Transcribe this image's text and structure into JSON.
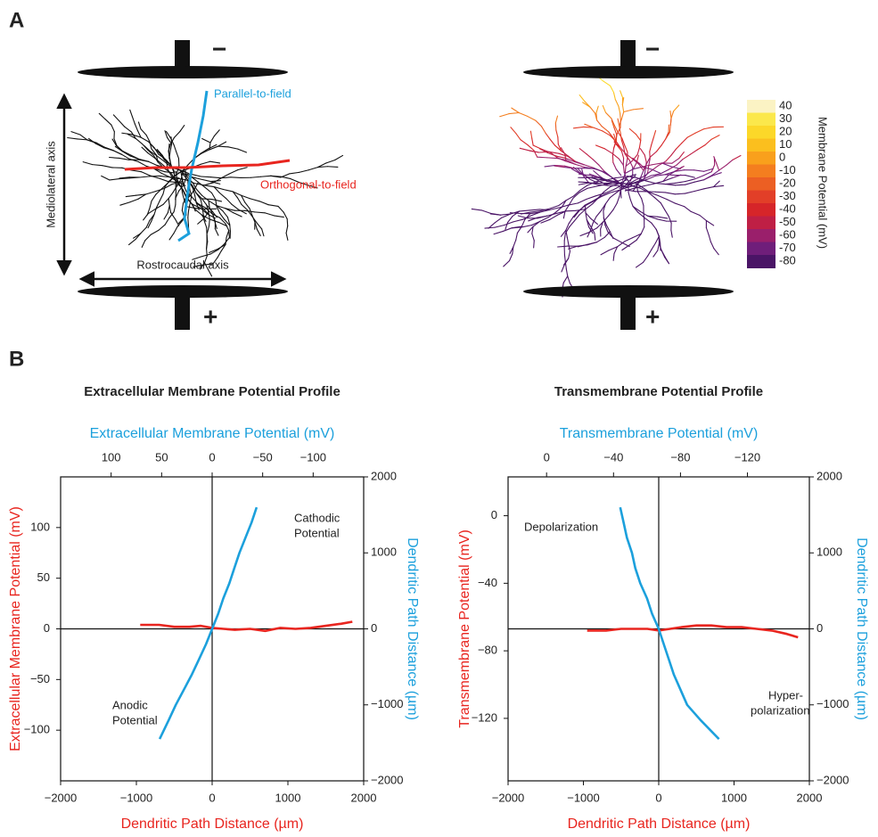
{
  "panel_a": {
    "label": "A",
    "electrode_top_sign": "−",
    "electrode_bottom_sign": "+",
    "parallel_label": "Parallel-to-field",
    "orthogonal_label": "Orthogonal-to-field",
    "mediolateral_label": "Mediolateral axis",
    "rostrocaudal_label": "Rostrocaudal axis",
    "colorbar": {
      "title": "Membrane Potential (mV)",
      "ticks": [
        40,
        30,
        20,
        10,
        0,
        -10,
        -20,
        -30,
        -40,
        -50,
        -60,
        -70,
        -80
      ],
      "colors": [
        "#fbf3c4",
        "#fbe84b",
        "#fcd829",
        "#fbbf1e",
        "#f9a01c",
        "#f47e1f",
        "#ec5f23",
        "#e23f28",
        "#d62529",
        "#bf1f45",
        "#9a1f6b",
        "#6f1e7a",
        "#4a1466"
      ]
    }
  },
  "panel_b": {
    "label": "B"
  },
  "chart_data": [
    {
      "type": "line",
      "title": "Extracellular Membrane Potential Profile",
      "xlabel": "Dendritic Path Distance (µm)",
      "ylabel": "Extracellular Membrane Potential (mV)",
      "x2label": "Extracellular Membrane Potential (mV)",
      "y2label": "Dendritic Path Distance (µm)",
      "xlim": [
        -2000,
        2000
      ],
      "xticks": [
        {
          "value": -2000,
          "label": "−2000"
        },
        {
          "value": -1000,
          "label": "−1000"
        },
        0,
        1000,
        2000
      ],
      "ylim": [
        -150,
        150
      ],
      "yticks": [
        {
          "value": -100,
          "label": "−100"
        },
        {
          "value": -50,
          "label": "−50"
        },
        0,
        50,
        100
      ],
      "x2lim": [
        150,
        -150
      ],
      "x2ticks": [
        100,
        50,
        0,
        {
          "value": -50,
          "label": "−50"
        },
        {
          "value": -100,
          "label": "−100"
        }
      ],
      "y2lim": [
        -2000,
        2000
      ],
      "y2ticks": [
        {
          "value": -2000,
          "label": "−2000"
        },
        {
          "value": -1000,
          "label": "−1000"
        },
        0,
        1000,
        2000
      ],
      "series": [
        {
          "color": "#e8251f",
          "x": [
            -950,
            -700,
            -500,
            -300,
            -150,
            0,
            150,
            300,
            500,
            700,
            900,
            1100,
            1300,
            1500,
            1700,
            1850
          ],
          "values": [
            4,
            4,
            2,
            2,
            3,
            1,
            0,
            -1,
            0,
            -2,
            1,
            0,
            1,
            3,
            5,
            7
          ]
        },
        {
          "color": "#1ca0dc",
          "x_axis": "x2",
          "axis": "y2",
          "x": [
            52,
            43,
            36,
            28,
            20,
            13,
            6,
            0,
            -6,
            -11,
            -17,
            -22,
            -27,
            -33,
            -39,
            -44
          ],
          "values": [
            -1450,
            -1200,
            -1000,
            -800,
            -600,
            -400,
            -200,
            0,
            200,
            400,
            600,
            800,
            1000,
            1200,
            1400,
            1600
          ]
        }
      ],
      "annotations": [
        [
          "Cathodic",
          "Potential"
        ],
        [
          "Anodic",
          "Potential"
        ]
      ]
    },
    {
      "type": "line",
      "title": "Transmembrane Potential Profile",
      "xlabel": "Dendritic Path Distance (µm)",
      "ylabel": "Transmembrane Potential (mV)",
      "x2label": "Transmembrane Potential (mV)",
      "y2label": "Dendritic Path Distance (µm)",
      "xlim": [
        -2000,
        2000
      ],
      "xticks": [
        {
          "value": -2000,
          "label": "−2000"
        },
        {
          "value": -1000,
          "label": "−1000"
        },
        0,
        1000,
        2000
      ],
      "ylim": [
        -157,
        23
      ],
      "yticks": [
        {
          "value": -120,
          "label": "−120"
        },
        {
          "value": -80,
          "label": "−80"
        },
        {
          "value": -40,
          "label": "−40"
        },
        0
      ],
      "x2lim": [
        23,
        -157
      ],
      "x2ticks": [
        0,
        {
          "value": -40,
          "label": "−40"
        },
        {
          "value": -80,
          "label": "−80"
        },
        {
          "value": -120,
          "label": "−120"
        }
      ],
      "y2lim": [
        -2000,
        2000
      ],
      "y2ticks": [
        {
          "value": -2000,
          "label": "−2000"
        },
        {
          "value": -1000,
          "label": "−1000"
        },
        0,
        1000,
        2000
      ],
      "series": [
        {
          "color": "#e8251f",
          "x": [
            -950,
            -700,
            -500,
            -300,
            -150,
            0,
            150,
            300,
            500,
            700,
            900,
            1100,
            1300,
            1500,
            1700,
            1850
          ],
          "values": [
            -68,
            -68,
            -67,
            -67,
            -67,
            -68,
            -67,
            -66,
            -65,
            -65,
            -66,
            -66,
            -67,
            -68,
            -70,
            -72
          ]
        },
        {
          "color": "#1ca0dc",
          "x_axis": "x2",
          "axis": "y2",
          "x": [
            -103,
            -92,
            -84,
            -80,
            -76,
            -73,
            -70,
            -67,
            -63,
            -60,
            -56,
            -53,
            -51,
            -48,
            -46,
            -44
          ],
          "values": [
            -1450,
            -1200,
            -1000,
            -800,
            -600,
            -400,
            -200,
            0,
            200,
            400,
            600,
            800,
            1000,
            1200,
            1400,
            1600
          ]
        }
      ],
      "annotations": [
        [
          "Depolarization"
        ],
        [
          "Hyper-",
          "polarization"
        ]
      ]
    }
  ]
}
